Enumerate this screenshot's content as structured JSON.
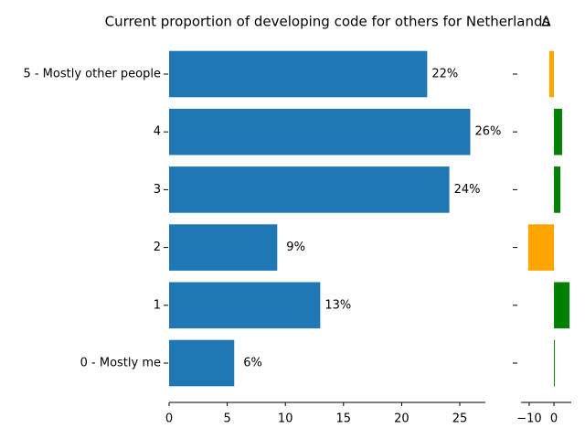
{
  "chart_data": [
    {
      "type": "barh",
      "title": "Current proportion of developing code for others for Netherlands",
      "categories": [
        "0 - Mostly me",
        "1",
        "2",
        "3",
        "4",
        "5 - Mostly other people"
      ],
      "values": [
        5.6,
        13.0,
        9.3,
        24.1,
        25.9,
        22.2
      ],
      "value_labels": [
        "6%",
        "13%",
        "9%",
        "24%",
        "26%",
        "22%"
      ],
      "color": "#1f77b4",
      "xlim": [
        0,
        27.2
      ],
      "xticks": [
        0,
        5,
        10,
        15,
        20,
        25
      ]
    },
    {
      "type": "barh",
      "title": "Δ",
      "values": [
        0.3,
        6.3,
        -10.4,
        2.6,
        3.3,
        -1.9
      ],
      "positive_color": "green",
      "negative_color": "orange",
      "xlim": [
        -13.3,
        7.0
      ],
      "xticks": [
        {
          "value": -10,
          "label": "−10"
        },
        0
      ]
    }
  ]
}
